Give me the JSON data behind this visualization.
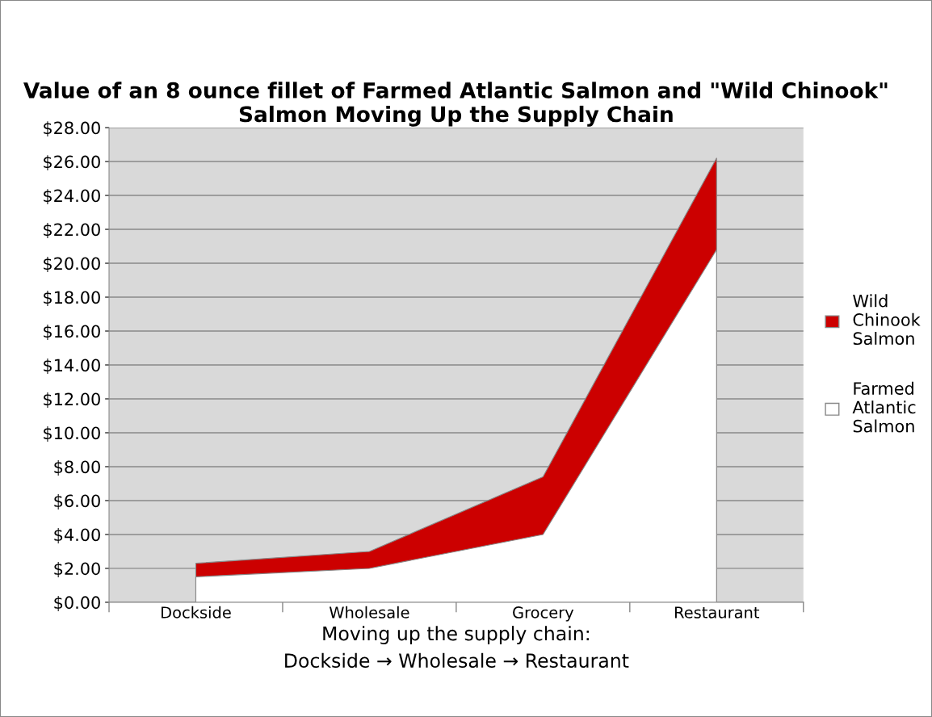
{
  "chart_data": {
    "type": "area",
    "title": "Value of an 8 ounce fillet of Farmed Atlantic Salmon and \"Wild Chinook\" Salmon Moving Up the Supply Chain",
    "xlabel": "Moving up the supply chain:\nDockside → Wholesale → Restaurant",
    "categories": [
      "Dockside",
      "Wholesale",
      "Grocery",
      "Restaurant"
    ],
    "series": [
      {
        "name": "Wild Chinook Salmon",
        "color": "#cc0000",
        "values": [
          2.3,
          3.0,
          7.4,
          26.2
        ]
      },
      {
        "name": "Farmed Atlantic Salmon",
        "color": "#ffffff",
        "values": [
          1.5,
          2.0,
          4.0,
          20.8
        ]
      }
    ],
    "ylim": [
      0,
      28
    ],
    "yticks": [
      {
        "value": 0,
        "label": "$0.00"
      },
      {
        "value": 2,
        "label": "$2.00"
      },
      {
        "value": 4,
        "label": "$4.00"
      },
      {
        "value": 6,
        "label": "$6.00"
      },
      {
        "value": 8,
        "label": "$8.00"
      },
      {
        "value": 10,
        "label": "$10.00"
      },
      {
        "value": 12,
        "label": "$12.00"
      },
      {
        "value": 14,
        "label": "$14.00"
      },
      {
        "value": 16,
        "label": "$16.00"
      },
      {
        "value": 18,
        "label": "$18.00"
      },
      {
        "value": 20,
        "label": "$20.00"
      },
      {
        "value": 22,
        "label": "$22.00"
      },
      {
        "value": 24,
        "label": "$24.00"
      },
      {
        "value": 26,
        "label": "$26.00"
      },
      {
        "value": 28,
        "label": "$28.00"
      }
    ],
    "grid": "y",
    "legend": "right"
  }
}
